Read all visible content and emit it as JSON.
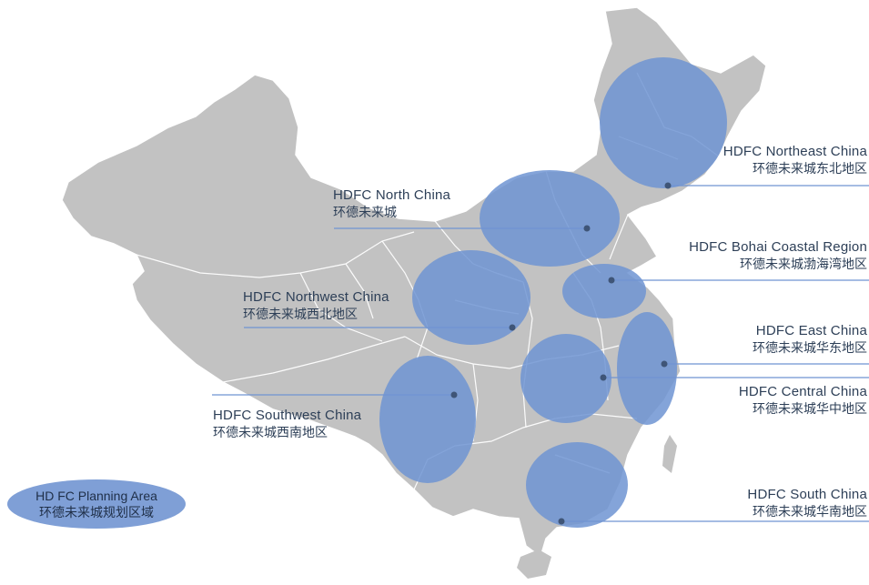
{
  "map": {
    "land_color": "#c2c2c2",
    "border_color": "#ffffff",
    "region_color": "#6f94d2",
    "leader_color": "#6f94d2",
    "label_color": "#2d3f57"
  },
  "regions": [
    {
      "id": "northeast",
      "name_en": "HDFC Northeast China",
      "name_zh": "环德未来城东北地区"
    },
    {
      "id": "north",
      "name_en": "HDFC North China",
      "name_zh": "环德未来城"
    },
    {
      "id": "bohai",
      "name_en": "HDFC Bohai Coastal Region",
      "name_zh": "环德未来城渤海湾地区"
    },
    {
      "id": "northwest",
      "name_en": "HDFC Northwest China",
      "name_zh": "环德未来城西北地区"
    },
    {
      "id": "east",
      "name_en": "HDFC East China",
      "name_zh": "环德未来城华东地区"
    },
    {
      "id": "central",
      "name_en": "HDFC Central China",
      "name_zh": "环德未来城华中地区"
    },
    {
      "id": "southwest",
      "name_en": "HDFC Southwest China",
      "name_zh": "环德未来城西南地区"
    },
    {
      "id": "south",
      "name_en": "HDFC South China",
      "name_zh": "环德未来城华南地区"
    }
  ],
  "legend": {
    "title_en": "HD FC Planning Area",
    "title_zh": "环德未来城规划区域",
    "color": "#7f9fd6"
  }
}
